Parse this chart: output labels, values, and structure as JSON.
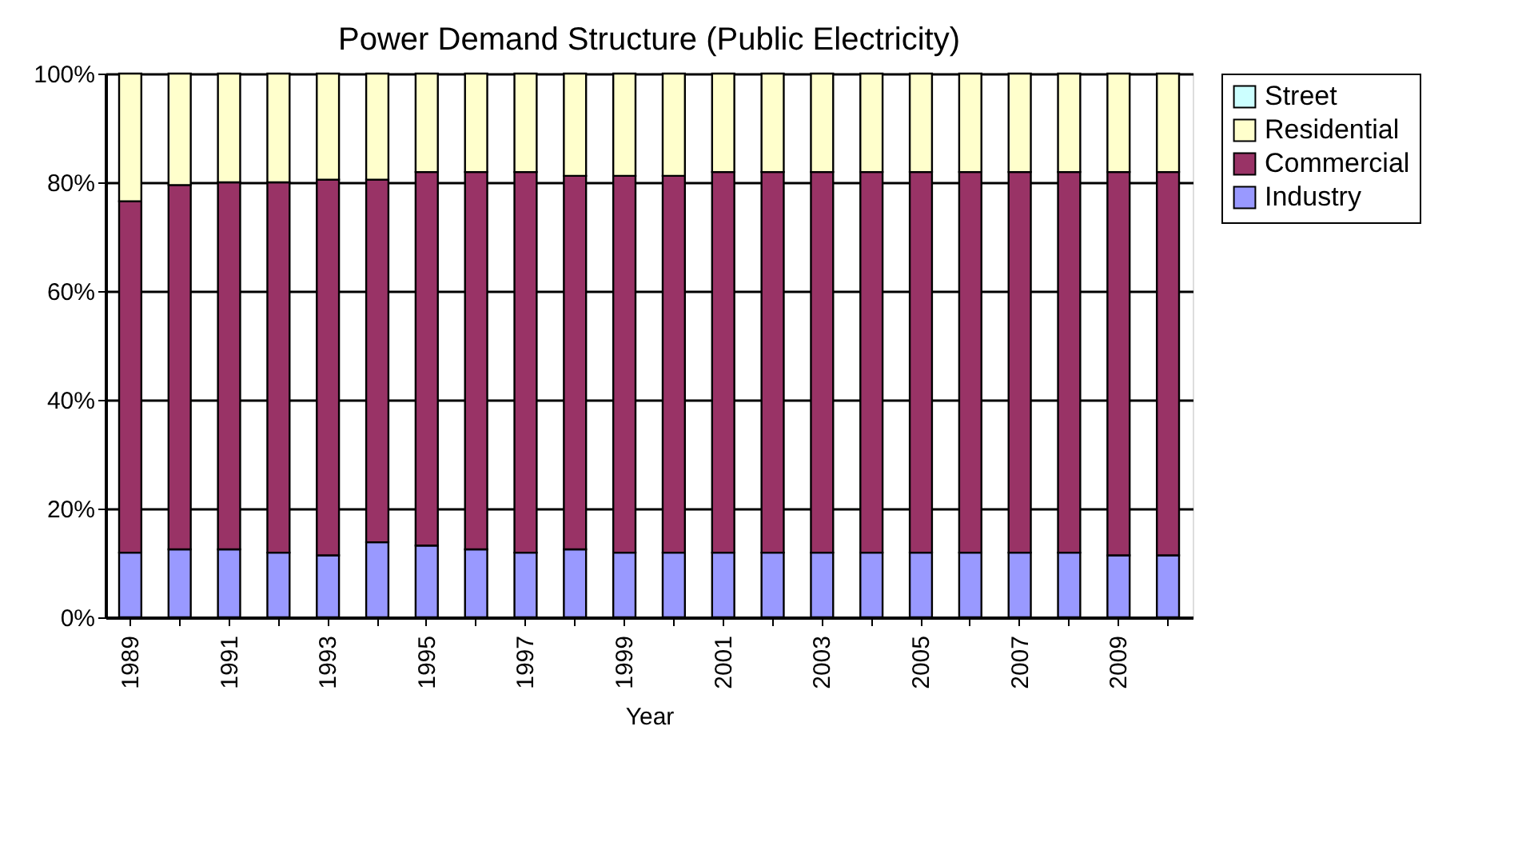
{
  "chart_data": {
    "type": "bar",
    "title": "Power Demand Structure (Public Electricity)",
    "xlabel": "Year",
    "stacked": true,
    "categories": [
      "1989",
      null,
      "1991",
      null,
      "1993",
      null,
      "1995",
      null,
      "1997",
      null,
      "1999",
      null,
      "2001",
      null,
      "2003",
      null,
      "2005",
      null,
      "2007",
      null,
      "2009",
      null
    ],
    "series": [
      {
        "name": "Industry",
        "color": "#9999ff",
        "values": [
          11.9,
          12.5,
          12.5,
          11.9,
          11.4,
          13.8,
          13.2,
          12.5,
          11.9,
          12.5,
          11.9,
          11.9,
          11.9,
          11.9,
          11.9,
          11.9,
          11.9,
          11.9,
          11.9,
          11.9,
          11.4,
          11.4
        ]
      },
      {
        "name": "Commercial",
        "color": "#993366",
        "values": [
          64.6,
          67.0,
          67.5,
          68.1,
          69.1,
          66.7,
          68.7,
          69.4,
          70.0,
          68.7,
          69.3,
          69.3,
          70.0,
          70.0,
          70.0,
          70.0,
          70.0,
          70.0,
          70.0,
          70.0,
          70.5,
          70.5
        ]
      },
      {
        "name": "Residential",
        "color": "#ffffcc",
        "values": [
          23.5,
          20.5,
          20.0,
          20.0,
          19.5,
          19.5,
          18.1,
          18.1,
          18.1,
          18.8,
          18.8,
          18.8,
          18.1,
          18.1,
          18.1,
          18.1,
          18.1,
          18.1,
          18.1,
          18.1,
          18.1,
          18.1
        ]
      },
      {
        "name": "Street",
        "color": "#ccffff",
        "values": [
          null,
          null,
          null,
          null,
          null,
          null,
          null,
          null,
          null,
          null,
          null,
          null,
          null,
          null,
          null,
          null,
          null,
          null,
          null,
          null,
          null,
          null
        ]
      }
    ],
    "ylim": [
      0,
      100
    ],
    "yticks": [
      {
        "value": 0,
        "label": "0%"
      },
      {
        "value": 20,
        "label": "20%"
      },
      {
        "value": 40,
        "label": "40%"
      },
      {
        "value": 60,
        "label": "60%"
      },
      {
        "value": 80,
        "label": "80%"
      },
      {
        "value": 100,
        "label": "100%"
      }
    ],
    "grid": "y",
    "legend": "right"
  }
}
